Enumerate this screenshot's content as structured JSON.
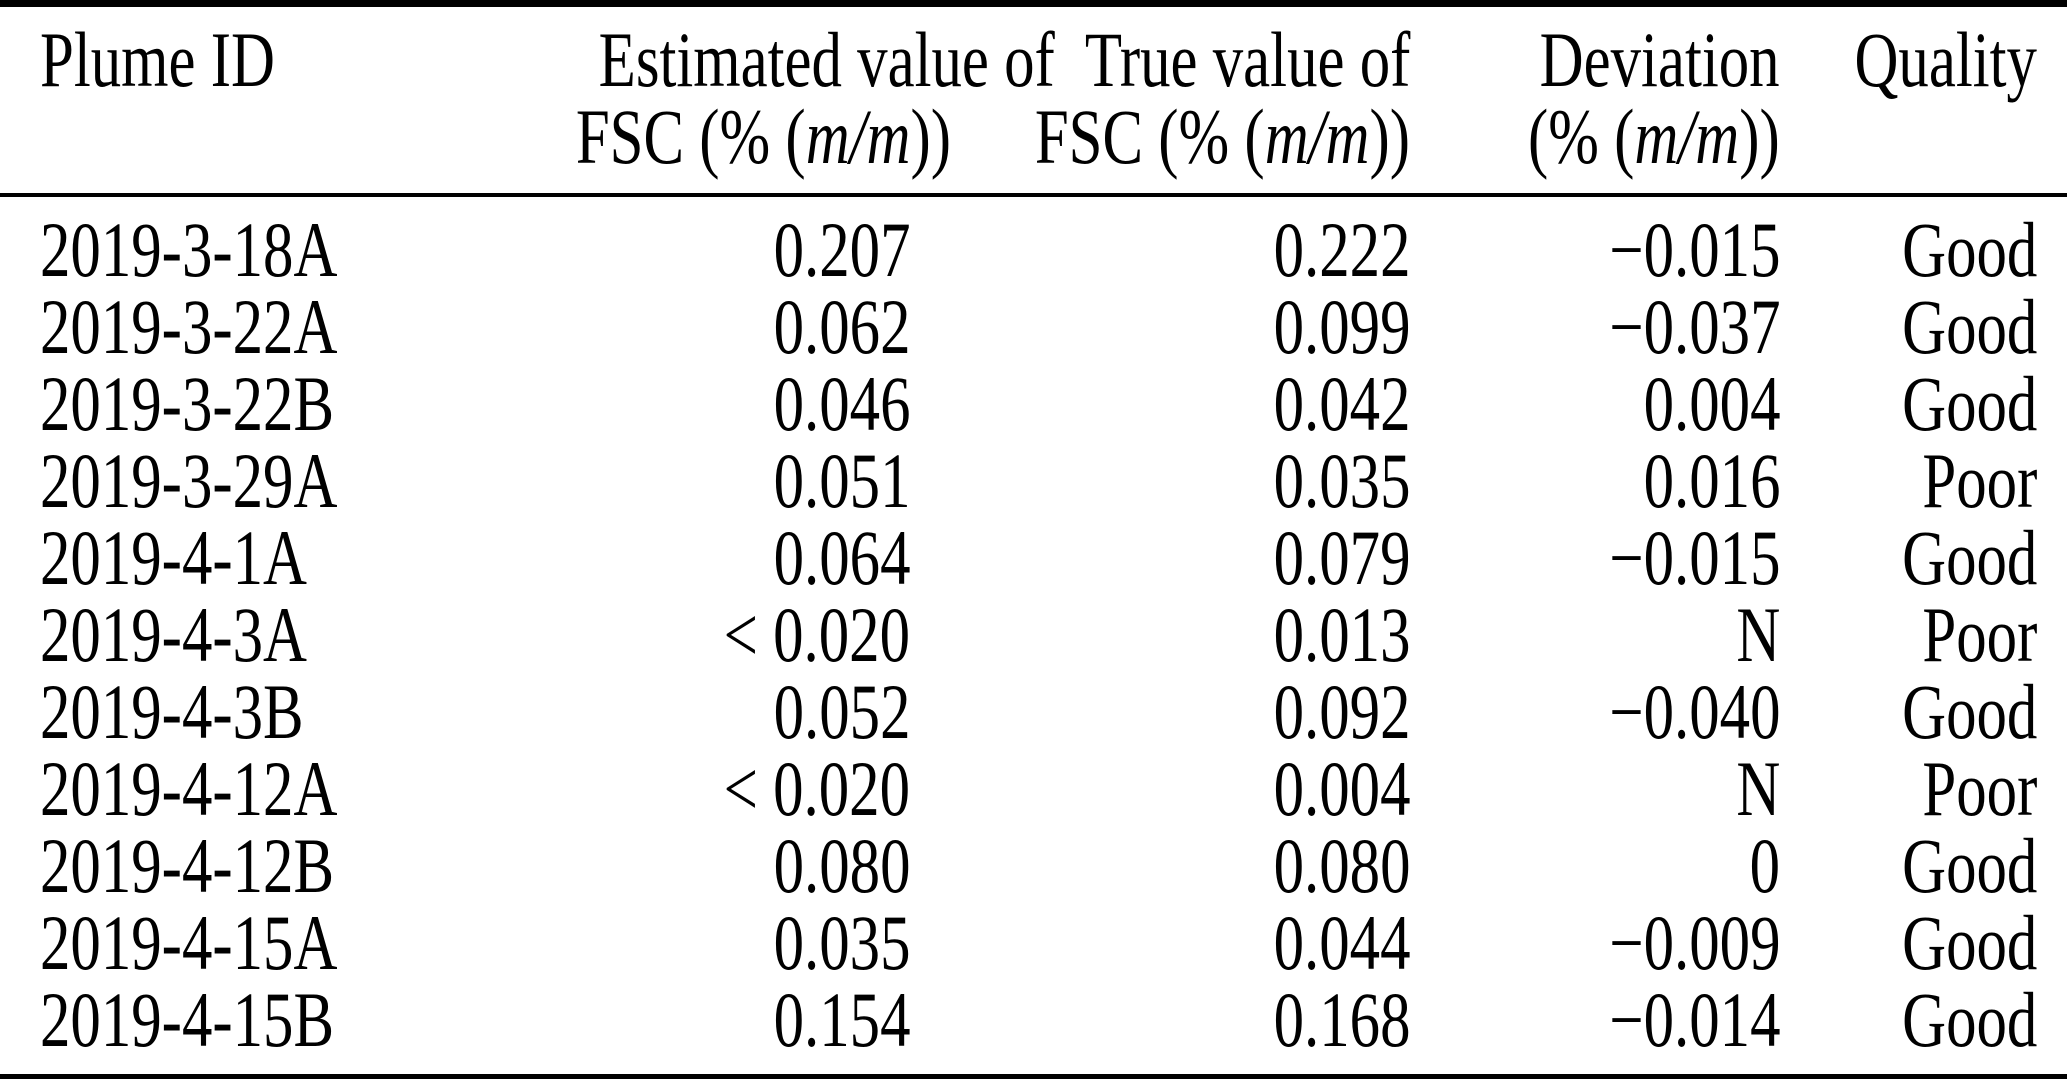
{
  "table": {
    "header": {
      "col1": {
        "line1": "Plume ID"
      },
      "col2": {
        "line1": "Estimated value of",
        "line2_pre": "FSC (% (",
        "line2_math": "m/m",
        "line2_post": "))"
      },
      "col3": {
        "line1": "True value of",
        "line2_pre": "FSC (% (",
        "line2_math": "m/m",
        "line2_post": "))"
      },
      "col4": {
        "line1": "Deviation",
        "line2_pre": "(% (",
        "line2_math": "m/m",
        "line2_post": "))"
      },
      "col5": {
        "line1": "Quality"
      }
    },
    "rows": [
      {
        "plume_id": "2019-3-18A",
        "estimated": "0.207",
        "true_value": "0.222",
        "deviation": "−0.015",
        "quality": "Good"
      },
      {
        "plume_id": "2019-3-22A",
        "estimated": "0.062",
        "true_value": "0.099",
        "deviation": "−0.037",
        "quality": "Good"
      },
      {
        "plume_id": "2019-3-22B",
        "estimated": "0.046",
        "true_value": "0.042",
        "deviation": "0.004",
        "quality": "Good"
      },
      {
        "plume_id": "2019-3-29A",
        "estimated": "0.051",
        "true_value": "0.035",
        "deviation": "0.016",
        "quality": "Poor"
      },
      {
        "plume_id": "2019-4-1A",
        "estimated": "0.064",
        "true_value": "0.079",
        "deviation": "−0.015",
        "quality": "Good"
      },
      {
        "plume_id": "2019-4-3A",
        "estimated": "< 0.020",
        "true_value": "0.013",
        "deviation": "N",
        "quality": "Poor"
      },
      {
        "plume_id": "2019-4-3B",
        "estimated": "0.052",
        "true_value": "0.092",
        "deviation": "−0.040",
        "quality": "Good"
      },
      {
        "plume_id": "2019-4-12A",
        "estimated": "< 0.020",
        "true_value": "0.004",
        "deviation": "N",
        "quality": "Poor"
      },
      {
        "plume_id": "2019-4-12B",
        "estimated": "0.080",
        "true_value": "0.080",
        "deviation": "0",
        "quality": "Good"
      },
      {
        "plume_id": "2019-4-15A",
        "estimated": "0.035",
        "true_value": "0.044",
        "deviation": "−0.009",
        "quality": "Good"
      },
      {
        "plume_id": "2019-4-15B",
        "estimated": "0.154",
        "true_value": "0.168",
        "deviation": "−0.014",
        "quality": "Good"
      }
    ],
    "colors": {
      "text": "#000000",
      "background": "#ffffff",
      "rule": "#000000"
    }
  }
}
